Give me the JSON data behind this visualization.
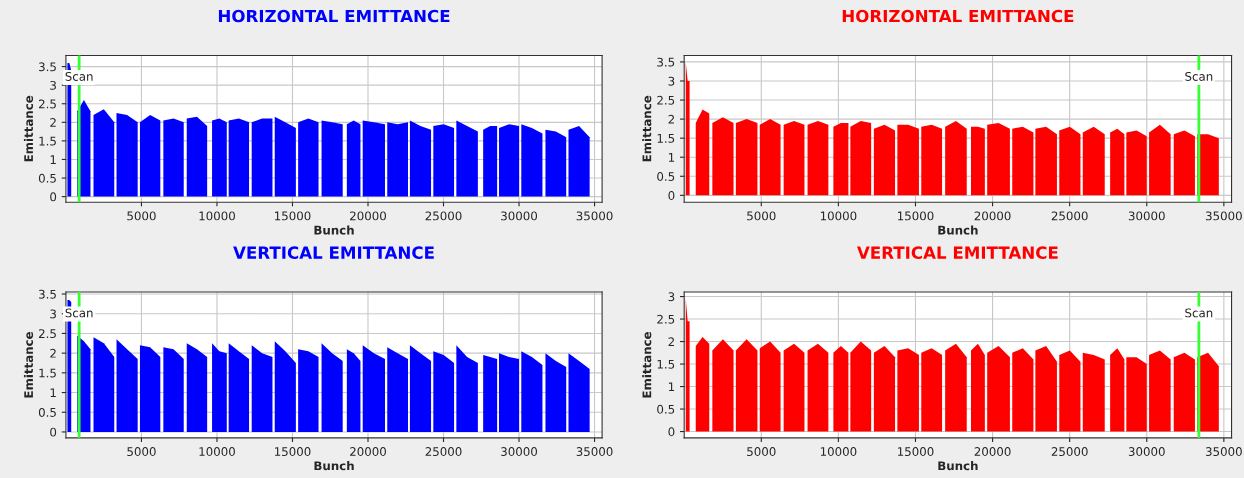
{
  "chart_data": [
    {
      "type": "area",
      "title": "HORIZONTAL EMITTANCE",
      "xlabel": "Bunch",
      "ylabel": "Emittance",
      "x": [
        100,
        225,
        350,
        550,
        750,
        1190,
        1625,
        1725,
        1825,
        2510,
        3200,
        3275,
        3350,
        4050,
        4750,
        4825,
        4900,
        5575,
        6250,
        6350,
        6450,
        7125,
        7800,
        7900,
        8000,
        8675,
        9350,
        9510,
        9675,
        10160,
        10650,
        10710,
        10775,
        11450,
        12125,
        12210,
        12300,
        12990,
        13675,
        13750,
        13825,
        14525,
        15225,
        15300,
        15375,
        16050,
        16725,
        16825,
        16925,
        17625,
        18325,
        18460,
        18600,
        19050,
        19500,
        19575,
        19650,
        20390,
        21125,
        21200,
        21275,
        21960,
        22650,
        22710,
        22775,
        23475,
        24175,
        24250,
        24325,
        25010,
        25700,
        25775,
        25850,
        26560,
        27275,
        27450,
        27625,
        28090,
        28550,
        28610,
        28675,
        29340,
        30000,
        30075,
        30150,
        30850,
        31550,
        31650,
        31750,
        32440,
        33125,
        33200,
        33275,
        33975,
        34675
      ],
      "series": [
        {
          "color": "#0000ff",
          "values": [
            3.6,
            3.6,
            3.4,
            null,
            2.3,
            2.6,
            2.3,
            null,
            2.2,
            2.35,
            2.0,
            null,
            2.25,
            2.2,
            2.0,
            null,
            2.0,
            2.2,
            2.05,
            null,
            2.05,
            2.1,
            2.0,
            null,
            2.1,
            2.15,
            1.9,
            null,
            2.05,
            2.1,
            2.0,
            null,
            2.05,
            2.1,
            2.0,
            null,
            2.0,
            2.1,
            2.1,
            null,
            2.15,
            2.0,
            1.85,
            null,
            2.0,
            2.1,
            2.0,
            null,
            2.05,
            2.0,
            1.95,
            null,
            1.95,
            2.05,
            1.95,
            null,
            2.05,
            2.0,
            1.95,
            null,
            2.0,
            1.95,
            2.0,
            null,
            2.05,
            1.9,
            1.8,
            null,
            1.9,
            1.95,
            1.85,
            null,
            2.05,
            1.9,
            1.75,
            null,
            1.8,
            1.9,
            1.9,
            null,
            1.85,
            1.95,
            1.9,
            null,
            1.95,
            1.85,
            1.7,
            null,
            1.8,
            1.75,
            1.6,
            null,
            1.8,
            1.9,
            1.6
          ]
        }
      ],
      "xlim": [
        0,
        35500
      ],
      "xticks": [
        5000,
        10000,
        15000,
        20000,
        25000,
        30000,
        35000
      ],
      "ylim": [
        -0.15,
        3.8
      ],
      "yticks": [
        0,
        0.5,
        1,
        1.5,
        2,
        2.5,
        3,
        3.5
      ],
      "ref_lines": [
        {
          "axis": "x",
          "value": 875,
          "label": "Scan",
          "color": "#33ff33"
        }
      ],
      "grid": true
    },
    {
      "type": "area",
      "title": "HORIZONTAL EMITTANCE",
      "xlabel": "Bunch",
      "ylabel": "Emittance",
      "x": [
        100,
        225,
        350,
        550,
        750,
        1190,
        1625,
        1725,
        1825,
        2510,
        3200,
        3275,
        3350,
        4050,
        4750,
        4825,
        4900,
        5575,
        6250,
        6350,
        6450,
        7125,
        7800,
        7900,
        8000,
        8675,
        9350,
        9510,
        9675,
        10160,
        10650,
        10710,
        10775,
        11450,
        12125,
        12210,
        12300,
        12990,
        13675,
        13750,
        13825,
        14525,
        15225,
        15300,
        15375,
        16050,
        16725,
        16825,
        16925,
        17625,
        18325,
        18460,
        18600,
        19050,
        19500,
        19575,
        19650,
        20390,
        21125,
        21200,
        21275,
        21960,
        22650,
        22710,
        22775,
        23475,
        24175,
        24250,
        24325,
        25010,
        25700,
        25775,
        25850,
        26560,
        27275,
        27450,
        27625,
        28090,
        28550,
        28610,
        28675,
        29340,
        30000,
        30075,
        30150,
        30850,
        31550,
        31650,
        31750,
        32440,
        33125,
        33200,
        33275,
        33975,
        34675
      ],
      "series": [
        {
          "color": "#ff0000",
          "values": [
            3.5,
            3.0,
            3.0,
            null,
            1.9,
            2.25,
            2.15,
            null,
            1.9,
            2.05,
            1.9,
            null,
            1.9,
            2.0,
            1.9,
            null,
            1.85,
            2.0,
            1.85,
            null,
            1.85,
            1.95,
            1.85,
            null,
            1.85,
            1.95,
            1.85,
            null,
            1.8,
            1.9,
            1.9,
            null,
            1.8,
            1.95,
            1.9,
            null,
            1.75,
            1.85,
            1.7,
            null,
            1.85,
            1.85,
            1.75,
            null,
            1.8,
            1.85,
            1.75,
            null,
            1.8,
            1.95,
            1.75,
            null,
            1.8,
            1.8,
            1.75,
            null,
            1.85,
            1.9,
            1.75,
            null,
            1.75,
            1.8,
            1.65,
            null,
            1.75,
            1.8,
            1.6,
            null,
            1.7,
            1.8,
            1.6,
            null,
            1.65,
            1.8,
            1.6,
            null,
            1.65,
            1.75,
            1.6,
            null,
            1.65,
            1.7,
            1.55,
            null,
            1.65,
            1.85,
            1.6,
            null,
            1.6,
            1.7,
            1.55,
            null,
            1.6,
            1.6,
            1.5
          ]
        }
      ],
      "xlim": [
        0,
        35500
      ],
      "xticks": [
        5000,
        10000,
        15000,
        20000,
        25000,
        30000,
        35000
      ],
      "ylim": [
        -0.18,
        3.67
      ],
      "yticks": [
        0,
        0.5,
        1,
        1.5,
        2,
        2.5,
        3,
        3.5
      ],
      "ref_lines": [
        {
          "axis": "x",
          "value": 33380,
          "label": "Scan",
          "color": "#33ff33"
        }
      ],
      "grid": true
    },
    {
      "type": "area",
      "title": "VERTICAL EMITTANCE",
      "xlabel": "Bunch",
      "ylabel": "Emittance",
      "x": [
        100,
        225,
        350,
        550,
        750,
        1190,
        1625,
        1725,
        1825,
        2510,
        3200,
        3275,
        3350,
        4050,
        4750,
        4825,
        4900,
        5575,
        6250,
        6350,
        6450,
        7125,
        7800,
        7900,
        8000,
        8675,
        9350,
        9510,
        9675,
        10160,
        10650,
        10710,
        10775,
        11450,
        12125,
        12210,
        12300,
        12990,
        13675,
        13750,
        13825,
        14525,
        15225,
        15300,
        15375,
        16050,
        16725,
        16825,
        16925,
        17625,
        18325,
        18460,
        18600,
        19050,
        19500,
        19575,
        19650,
        20390,
        21125,
        21200,
        21275,
        21960,
        22650,
        22710,
        22775,
        23475,
        24175,
        24250,
        24325,
        25010,
        25700,
        25775,
        25850,
        26560,
        27275,
        27450,
        27625,
        28090,
        28550,
        28610,
        28675,
        29340,
        30000,
        30075,
        30150,
        30850,
        31550,
        31650,
        31750,
        32440,
        33125,
        33200,
        33275,
        33975,
        34675
      ],
      "series": [
        {
          "color": "#0000ff",
          "values": [
            3.35,
            3.35,
            3.3,
            null,
            2.45,
            2.3,
            2.1,
            null,
            2.4,
            2.25,
            1.9,
            null,
            2.35,
            2.1,
            1.85,
            null,
            2.2,
            2.15,
            1.9,
            null,
            2.15,
            2.1,
            1.85,
            null,
            2.25,
            2.1,
            1.9,
            null,
            2.25,
            2.05,
            2.0,
            null,
            2.25,
            2.05,
            1.85,
            null,
            2.2,
            2.0,
            1.9,
            null,
            2.3,
            2.05,
            1.75,
            null,
            2.1,
            2.05,
            1.9,
            null,
            2.25,
            2.0,
            1.8,
            null,
            2.1,
            2.0,
            1.8,
            null,
            2.2,
            2.0,
            1.85,
            null,
            2.15,
            2.0,
            1.85,
            null,
            2.2,
            2.0,
            1.8,
            null,
            2.05,
            1.95,
            1.75,
            null,
            2.2,
            1.9,
            1.75,
            null,
            1.95,
            1.9,
            1.85,
            null,
            2.0,
            1.9,
            1.85,
            null,
            2.05,
            1.9,
            1.7,
            null,
            2.0,
            1.8,
            1.65,
            null,
            2.0,
            1.8,
            1.6
          ]
        }
      ],
      "xlim": [
        0,
        35500
      ],
      "xticks": [
        5000,
        10000,
        15000,
        20000,
        25000,
        30000,
        35000
      ],
      "ylim": [
        -0.15,
        3.55
      ],
      "yticks": [
        0,
        0.5,
        1,
        1.5,
        2,
        2.5,
        3,
        3.5
      ],
      "ref_lines": [
        {
          "axis": "x",
          "value": 875,
          "label": "Scan",
          "color": "#33ff33"
        }
      ],
      "grid": true
    },
    {
      "type": "area",
      "title": "VERTICAL EMITTANCE",
      "xlabel": "Bunch",
      "ylabel": "Emittance",
      "x": [
        100,
        225,
        350,
        550,
        750,
        1190,
        1625,
        1725,
        1825,
        2510,
        3200,
        3275,
        3350,
        4050,
        4750,
        4825,
        4900,
        5575,
        6250,
        6350,
        6450,
        7125,
        7800,
        7900,
        8000,
        8675,
        9350,
        9510,
        9675,
        10160,
        10650,
        10710,
        10775,
        11450,
        12125,
        12210,
        12300,
        12990,
        13675,
        13750,
        13825,
        14525,
        15225,
        15300,
        15375,
        16050,
        16725,
        16825,
        16925,
        17625,
        18325,
        18460,
        18600,
        19050,
        19500,
        19575,
        19650,
        20390,
        21125,
        21200,
        21275,
        21960,
        22650,
        22710,
        22775,
        23475,
        24175,
        24250,
        24325,
        25010,
        25700,
        25775,
        25850,
        26560,
        27275,
        27450,
        27625,
        28090,
        28550,
        28610,
        28675,
        29340,
        30000,
        30075,
        30150,
        30850,
        31550,
        31650,
        31750,
        32440,
        33125,
        33200,
        33275,
        33975,
        34675
      ],
      "series": [
        {
          "color": "#ff0000",
          "values": [
            2.95,
            2.45,
            2.45,
            null,
            1.9,
            2.1,
            1.95,
            null,
            1.8,
            2.05,
            1.8,
            null,
            1.8,
            2.05,
            1.8,
            null,
            1.85,
            2.0,
            1.75,
            null,
            1.8,
            1.95,
            1.75,
            null,
            1.8,
            1.95,
            1.75,
            null,
            1.75,
            1.9,
            1.75,
            null,
            1.75,
            2.0,
            1.8,
            null,
            1.75,
            1.9,
            1.65,
            null,
            1.8,
            1.85,
            1.7,
            null,
            1.75,
            1.85,
            1.7,
            null,
            1.8,
            1.95,
            1.65,
            null,
            1.8,
            1.95,
            1.7,
            null,
            1.75,
            1.9,
            1.65,
            null,
            1.75,
            1.85,
            1.6,
            null,
            1.8,
            1.9,
            1.55,
            null,
            1.7,
            1.8,
            1.55,
            null,
            1.75,
            1.7,
            1.6,
            null,
            1.7,
            1.85,
            1.6,
            null,
            1.65,
            1.65,
            1.5,
            null,
            1.7,
            1.8,
            1.6,
            null,
            1.65,
            1.75,
            1.6,
            null,
            1.65,
            1.75,
            1.45
          ]
        }
      ],
      "xlim": [
        0,
        35500
      ],
      "xticks": [
        5000,
        10000,
        15000,
        20000,
        25000,
        30000,
        35000
      ],
      "ylim": [
        -0.14,
        3.1
      ],
      "yticks": [
        0,
        0.5,
        1,
        1.5,
        2,
        2.5,
        3
      ],
      "ref_lines": [
        {
          "axis": "x",
          "value": 33380,
          "label": "Scan",
          "color": "#33ff33"
        }
      ],
      "grid": true
    }
  ]
}
